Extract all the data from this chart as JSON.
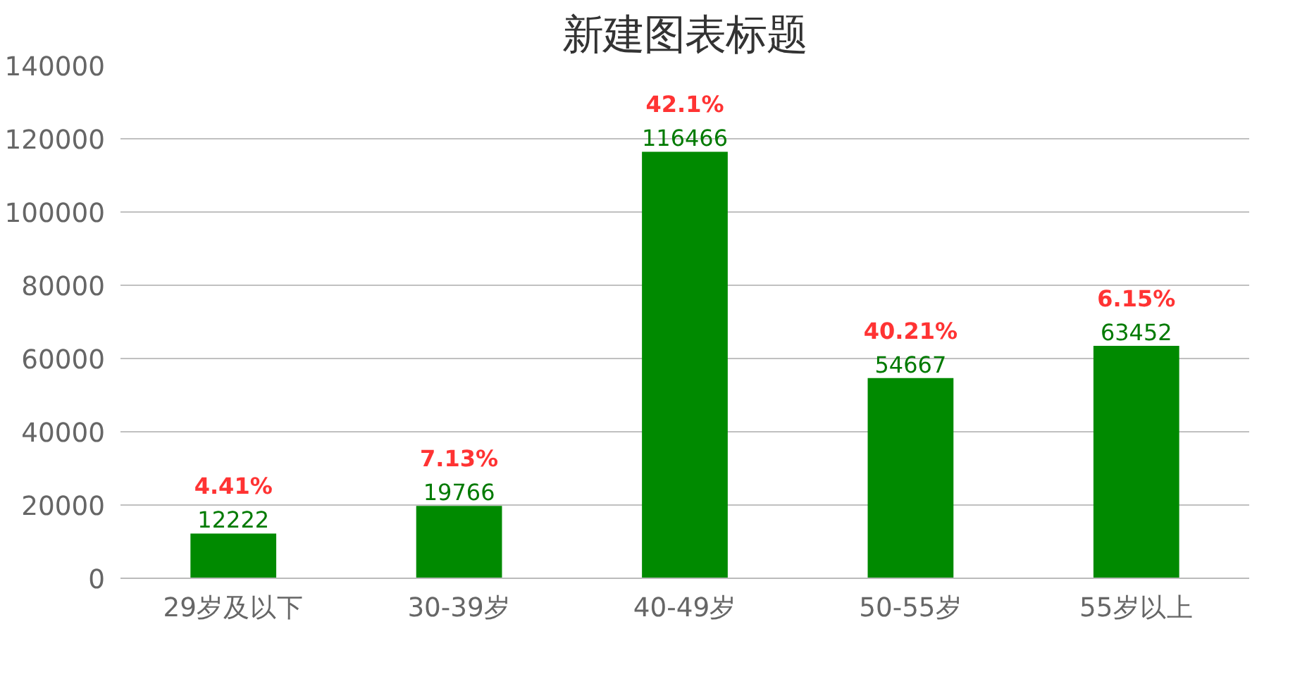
{
  "chart_data": {
    "type": "bar",
    "title": "新建图表标题",
    "categories": [
      "29岁及以下",
      "30-39岁",
      "40-49岁",
      "50-55岁",
      "55岁以上"
    ],
    "values": [
      12222,
      19766,
      116466,
      54667,
      63452
    ],
    "color": "#008a00",
    "ylim": [
      0,
      140000
    ],
    "yticks": [
      0,
      20000,
      40000,
      60000,
      80000,
      100000,
      120000,
      140000
    ],
    "grid": "y",
    "data_labels": true,
    "annotations": [
      {
        "text": "4.41%",
        "x": "29岁及以下",
        "y": 12222
      },
      {
        "text": "7.13%",
        "x": "30-39岁",
        "y": 19766
      },
      {
        "text": "42.1%",
        "x": "40-49岁",
        "y": 116466
      },
      {
        "text": "40.21%",
        "x": "50-55岁",
        "y": 54667
      },
      {
        "text": "6.15%",
        "x": "55岁以上",
        "y": 63452
      }
    ]
  }
}
